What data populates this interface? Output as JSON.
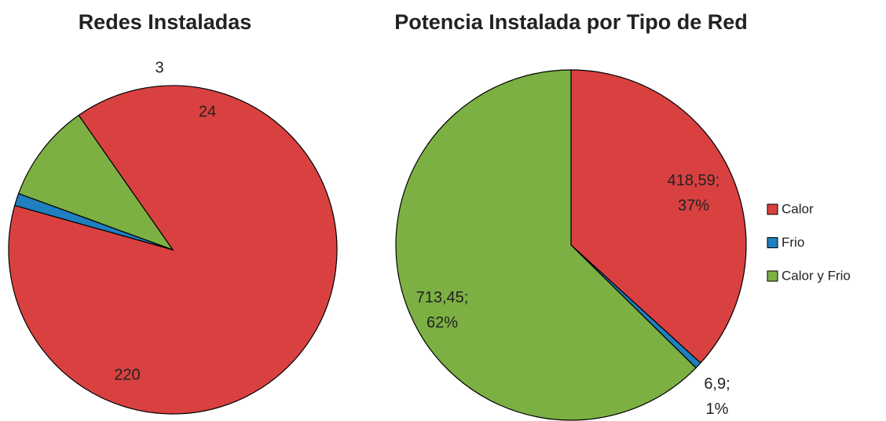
{
  "chart_data": [
    {
      "type": "pie",
      "title": "Redes Instaladas",
      "values": [
        220,
        3,
        24
      ],
      "colors": [
        "#d94141",
        "#1f7fbf",
        "#7cb043"
      ]
    },
    {
      "type": "pie",
      "title": "Potencia Instalada por Tipo de Red",
      "categories": [
        "Calor",
        "Frio",
        "Calor y Frio"
      ],
      "values": [
        418.59,
        6.9,
        713.45
      ],
      "value_labels": [
        "418,59; 37%",
        "6,9; 1%",
        "713,45; 62%"
      ],
      "colors": [
        "#d94141",
        "#1f7fbf",
        "#7cb043"
      ],
      "legend": "right"
    }
  ]
}
